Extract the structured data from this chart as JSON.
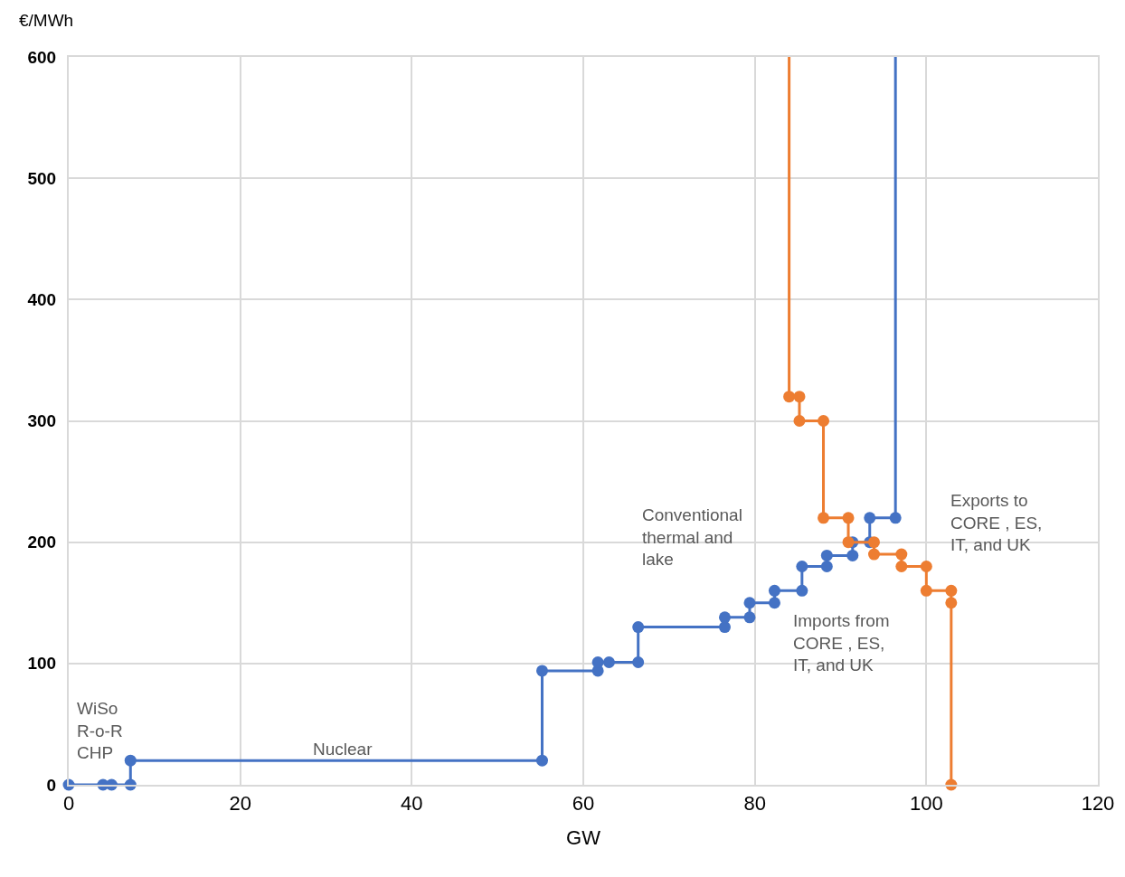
{
  "chart_data": {
    "type": "line",
    "xlabel": "GW",
    "ylabel": "€/MWh",
    "xlim": [
      0,
      120
    ],
    "xticks": [
      0,
      20,
      40,
      60,
      80,
      100,
      120
    ],
    "ylim": [
      0,
      600
    ],
    "yticks": [
      0,
      100,
      200,
      300,
      400,
      500,
      600
    ],
    "grid": true,
    "series": [
      {
        "color": "#4472c4",
        "marker": "circle",
        "x": [
          0,
          4,
          5,
          7.2,
          7.2,
          55.2,
          55.2,
          61.7,
          61.7,
          63,
          66.4,
          66.4,
          76.5,
          76.5,
          79.4,
          79.4,
          82.3,
          82.3,
          85.5,
          85.5,
          88.4,
          88.4,
          91.4,
          91.4,
          93.4,
          93.4,
          96.4
        ],
        "values": [
          0,
          0,
          0,
          0,
          20,
          20,
          94,
          94,
          101,
          101,
          101,
          130,
          130,
          138,
          138,
          150,
          150,
          160,
          160,
          180,
          180,
          189,
          189,
          200,
          200,
          220,
          220
        ]
      },
      {
        "color": "#4472c4",
        "x": [
          96.4,
          96.4
        ],
        "values": [
          220,
          600
        ]
      },
      {
        "color": "#ed7d31",
        "x": [
          84,
          84
        ],
        "values": [
          600,
          320
        ]
      },
      {
        "color": "#ed7d31",
        "marker": "circle",
        "x": [
          84,
          85.2,
          85.2,
          88,
          88,
          90.9,
          90.9,
          93.9,
          93.9,
          97.1,
          97.1,
          100,
          100,
          102.9,
          102.9,
          102.9
        ],
        "values": [
          320,
          320,
          300,
          300,
          220,
          220,
          200,
          200,
          190,
          190,
          180,
          180,
          160,
          160,
          150,
          0
        ]
      }
    ],
    "annotations": [
      "WiSo\nR-o-R\nCHP",
      {
        "text": "Nuclear",
        "x": 32,
        "y": 20
      },
      "Conventional\nthermal and\nlake",
      "Imports from\nCORE , ES,\nIT, and UK",
      "Exports to\nCORE , ES,\nIT, and UK"
    ]
  }
}
